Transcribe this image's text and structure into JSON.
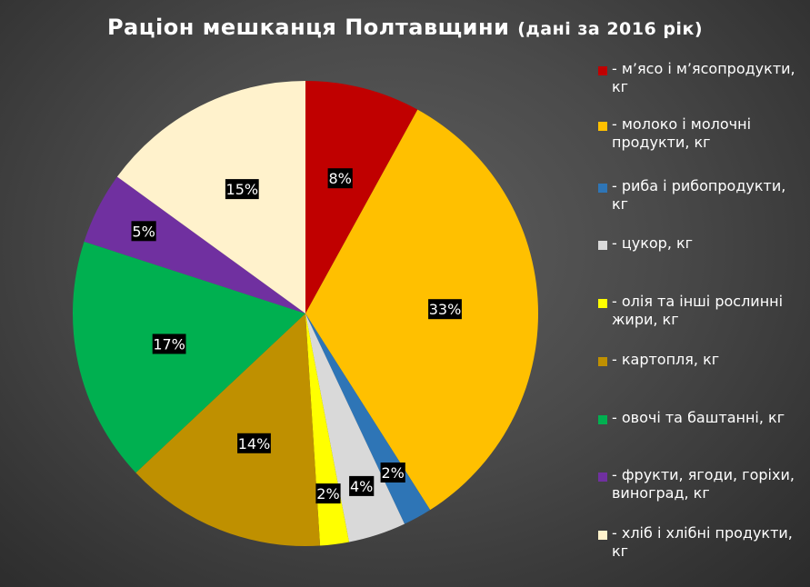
{
  "title": "Раціон мешканця Полтавщини",
  "subtitle": "(дані за 2016 рік)",
  "chart_data": {
    "type": "pie",
    "title": "Раціон мешканця Полтавщини (дані за 2016 рік)",
    "legend_position": "right",
    "series": [
      {
        "name": "- м’ясо і м’ясопродукти, кг",
        "value": 8,
        "label": "8%",
        "color": "#C00000"
      },
      {
        "name": "- молоко і молочні продукти, кг",
        "value": 33,
        "label": "33%",
        "color": "#FFC000"
      },
      {
        "name": "- риба і рибопродукти, кг",
        "value": 2,
        "label": "2%",
        "color": "#2E75B6"
      },
      {
        "name": "- цукор, кг",
        "value": 4,
        "label": "4%",
        "color": "#D9D9D9"
      },
      {
        "name": "- олія та інші рослинні жири, кг",
        "value": 2,
        "label": "2%",
        "color": "#FFFF00"
      },
      {
        "name": "- картопля, кг",
        "value": 14,
        "label": "14%",
        "color": "#BF9000"
      },
      {
        "name": "- овочі та баштанні, кг",
        "value": 17,
        "label": "17%",
        "color": "#00B050"
      },
      {
        "name": "- фрукти, ягоди, горіхи, виноград, кг",
        "value": 5,
        "label": "5%",
        "color": "#7030A0"
      },
      {
        "name": "- хліб і хлібні продукти, кг",
        "value": 15,
        "label": "15%",
        "color": "#FFF2CC"
      }
    ]
  }
}
